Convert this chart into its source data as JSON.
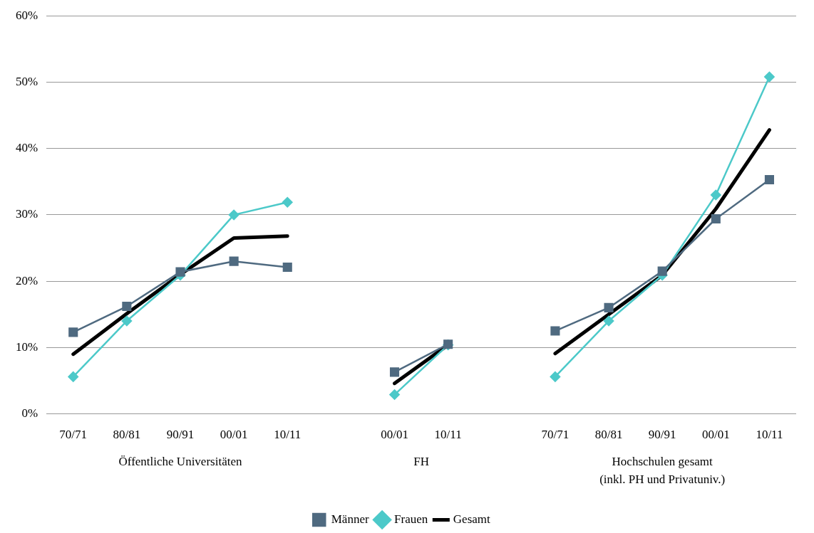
{
  "chart_data": {
    "type": "line",
    "categories": [
      "70/71",
      "80/81",
      "90/91",
      "00/01",
      "10/11",
      null,
      "00/01",
      "10/11",
      null,
      "70/71",
      "80/81",
      "90/91",
      "00/01",
      "10/11"
    ],
    "series": [
      {
        "name": "Frauen",
        "color": "#4cc9c9",
        "marker": "diamond",
        "values": [
          5.6,
          14,
          20.9,
          30,
          31.9,
          null,
          2.9,
          10.4,
          null,
          5.6,
          14,
          20.9,
          33,
          50.8
        ]
      },
      {
        "name": "Männer",
        "color": "#4f6a80",
        "marker": "square",
        "values": [
          12.3,
          16.2,
          21.4,
          23,
          22.1,
          null,
          6.3,
          10.5,
          null,
          12.5,
          16,
          21.5,
          29.4,
          35.3
        ]
      },
      {
        "name": "Gesamt",
        "color": "#000000",
        "marker": "none",
        "values": [
          9,
          15.1,
          21,
          26.5,
          26.8,
          null,
          4.6,
          10.4,
          null,
          9.1,
          15,
          20.9,
          30.9,
          42.8
        ]
      }
    ],
    "ylim": [
      0,
      60
    ],
    "yticks": [
      {
        "value": 0,
        "label": "0%"
      },
      {
        "value": 10,
        "label": "10%"
      },
      {
        "value": 20,
        "label": "20%"
      },
      {
        "value": 30,
        "label": "30%"
      },
      {
        "value": 40,
        "label": "40%"
      },
      {
        "value": 50,
        "label": "50%"
      },
      {
        "value": 60,
        "label": "60%"
      }
    ],
    "grid": "y",
    "legend": "bottom",
    "annotations": [
      "Öffentliche Universitäten",
      "FH",
      "Hochschulen gesamt\n(inkl. PH und Privatuniv.)"
    ]
  }
}
